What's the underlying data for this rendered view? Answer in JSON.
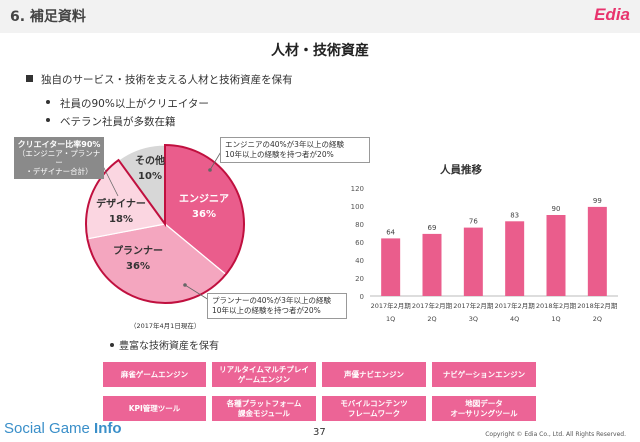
{
  "header": {
    "section": "6. 補足資料",
    "logo": "Edia"
  },
  "title": "人材・技術資産",
  "bullets": {
    "main": "独自のサービス・技術を支える人材と技術資産を保有",
    "sub": [
      "社員の90%以上がクリエイター",
      "ベテラン社員が多数在籍"
    ]
  },
  "pie": {
    "slices": [
      {
        "label": "エンジニア",
        "pct": "36%",
        "value": 36,
        "color": "#ea5d8c"
      },
      {
        "label": "プランナー",
        "pct": "36%",
        "value": 36,
        "color": "#f4a6bf"
      },
      {
        "label": "デザイナー",
        "pct": "18%",
        "value": 18,
        "color": "#fbd6e1"
      },
      {
        "label": "その他",
        "pct": "10%",
        "value": 10,
        "color": "#d7d7d7"
      }
    ],
    "ratio_box": {
      "line1": "クリエイター比率90%",
      "line2": "（エンジニア・プランナー",
      "line3": "・デザイナー合計）"
    },
    "callout_engineer": {
      "line1": "エンジニアの40%が3年以上の経験",
      "line2": "10年以上の経験を持つ者が20%"
    },
    "callout_planner": {
      "line1": "プランナーの40%が3年以上の経験",
      "line2": "10年以上の経験を持つ者が20%"
    },
    "date_note": "（2017年4月1日現在）"
  },
  "chart_data": {
    "type": "bar",
    "title": "人員推移",
    "categories": [
      [
        "2017年2月期",
        "1Q"
      ],
      [
        "2017年2月期",
        "2Q"
      ],
      [
        "2017年2月期",
        "3Q"
      ],
      [
        "2017年2月期",
        "4Q"
      ],
      [
        "2018年2月期",
        "1Q"
      ],
      [
        "2018年2月期",
        "2Q"
      ]
    ],
    "values": [
      64,
      69,
      76,
      83,
      90,
      99
    ],
    "ylim": [
      0,
      120
    ],
    "yticks": [
      0,
      20,
      40,
      60,
      80,
      100,
      120
    ],
    "color": "#ea5d8c",
    "grid": false
  },
  "tech": {
    "bullet": "豊富な技術資産を保有",
    "tags": [
      [
        "麻雀ゲームエンジン"
      ],
      [
        "リアルタイムマルチプレイ",
        "ゲームエンジン"
      ],
      [
        "声優ナビエンジン"
      ],
      [
        "ナビゲーションエンジン"
      ],
      [
        "KPI管理ツール"
      ],
      [
        "各種プラットフォーム",
        "課金モジュール"
      ],
      [
        "モバイルコンテンツ",
        "フレームワーク"
      ],
      [
        "地図データ",
        "オーサリングツール"
      ]
    ]
  },
  "footer": {
    "brand_a": "Social Game ",
    "brand_b": "Info",
    "page": "37",
    "copyright": "Copyright © Edia Co., Ltd. All Rights Reserved."
  }
}
